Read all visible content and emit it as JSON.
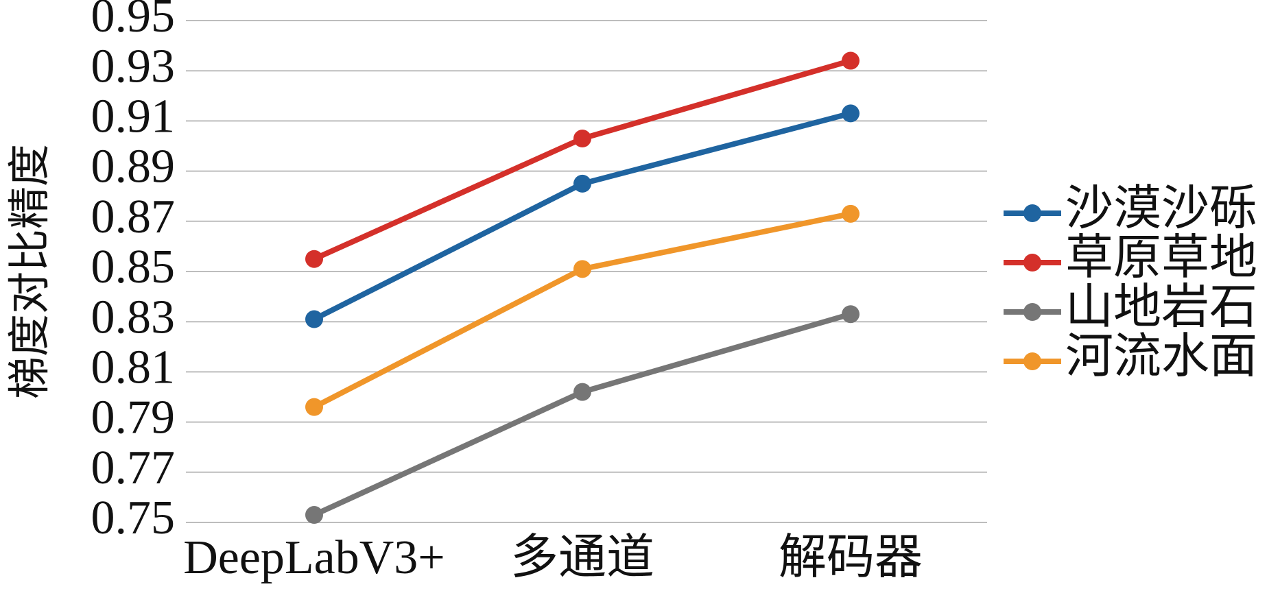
{
  "chart_data": {
    "type": "line",
    "y_label": "梯度对比精度",
    "categories": [
      "DeepLabV3+",
      "多通道",
      "解码器"
    ],
    "series": [
      {
        "name": "沙漠沙砾",
        "color": "#1f64a0",
        "values": [
          0.831,
          0.885,
          0.913
        ]
      },
      {
        "name": "草原草地",
        "color": "#d4302a",
        "values": [
          0.855,
          0.903,
          0.934
        ]
      },
      {
        "name": "山地岩石",
        "color": "#767676",
        "values": [
          0.753,
          0.802,
          0.833
        ]
      },
      {
        "name": "河流水面",
        "color": "#f0962a",
        "values": [
          0.796,
          0.851,
          0.873
        ]
      }
    ],
    "ylim": [
      0.75,
      0.95
    ],
    "yticks": [
      0.75,
      0.77,
      0.79,
      0.81,
      0.83,
      0.85,
      0.87,
      0.89,
      0.91,
      0.93,
      0.95
    ],
    "grid": true,
    "legend": "right"
  }
}
